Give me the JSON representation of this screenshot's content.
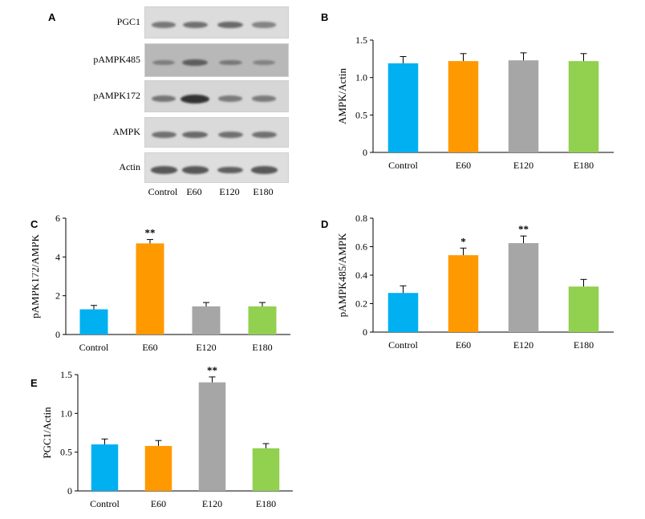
{
  "panel_a": {
    "letter": "A",
    "rows": [
      {
        "label": "PGC1",
        "bands": [
          0.45,
          0.5,
          0.55,
          0.35
        ],
        "bg": "#dcdcdc"
      },
      {
        "label": "pAMPK485",
        "bands": [
          0.25,
          0.55,
          0.3,
          0.2
        ],
        "bg": "#b8b8b8"
      },
      {
        "label": "pAMPK172",
        "bands": [
          0.45,
          1.0,
          0.4,
          0.4
        ],
        "bg": "#d6d6d6"
      },
      {
        "label": "AMPK",
        "bands": [
          0.5,
          0.55,
          0.5,
          0.5
        ],
        "bg": "#dadada"
      },
      {
        "label": "Actin",
        "bands": [
          0.7,
          0.7,
          0.65,
          0.7
        ],
        "bg": "#dedede"
      }
    ],
    "lanes": [
      "Control",
      "E60",
      "E120",
      "E180"
    ]
  },
  "colors": {
    "Control": "#00b0f0",
    "E60": "#ff9900",
    "E120": "#a6a6a6",
    "E180": "#92d050"
  },
  "chart_data": [
    {
      "letter": "B",
      "type": "bar",
      "categories": [
        "Control",
        "E60",
        "E120",
        "E180"
      ],
      "values": [
        1.19,
        1.22,
        1.23,
        1.22
      ],
      "errors": [
        0.09,
        0.1,
        0.1,
        0.1
      ],
      "annotations": [
        "",
        "",
        "",
        ""
      ],
      "ylabel": "AMPK/Actin",
      "ylim": [
        0,
        1.5
      ],
      "yticks": [
        "0",
        "0.5",
        "1.0",
        "1.5"
      ],
      "ytick_values": [
        0,
        0.5,
        1.0,
        1.5
      ]
    },
    {
      "letter": "C",
      "type": "bar",
      "categories": [
        "Control",
        "E60",
        "E120",
        "E180"
      ],
      "values": [
        1.3,
        4.7,
        1.45,
        1.45
      ],
      "errors": [
        0.2,
        0.2,
        0.2,
        0.2
      ],
      "annotations": [
        "",
        "**",
        "",
        ""
      ],
      "ylabel": "pAMPK172/AMPK",
      "ylim": [
        0,
        6
      ],
      "yticks": [
        "0",
        "2",
        "4",
        "6"
      ],
      "ytick_values": [
        0,
        2,
        4,
        6
      ]
    },
    {
      "letter": "D",
      "type": "bar",
      "categories": [
        "Control",
        "E60",
        "E120",
        "E180"
      ],
      "values": [
        0.275,
        0.54,
        0.625,
        0.32
      ],
      "errors": [
        0.05,
        0.05,
        0.05,
        0.05
      ],
      "annotations": [
        "",
        "*",
        "**",
        ""
      ],
      "ylabel": "pAMPK485/AMPK",
      "ylim": [
        0,
        0.8
      ],
      "yticks": [
        "0",
        "0.2",
        "0.4",
        "0.6",
        "0.8"
      ],
      "ytick_values": [
        0,
        0.2,
        0.4,
        0.6,
        0.8
      ]
    },
    {
      "letter": "E",
      "type": "bar",
      "categories": [
        "Control",
        "E60",
        "E120",
        "E180"
      ],
      "values": [
        0.6,
        0.58,
        1.4,
        0.55
      ],
      "errors": [
        0.07,
        0.07,
        0.07,
        0.06
      ],
      "annotations": [
        "",
        "",
        "**",
        ""
      ],
      "ylabel": "PGC1/Actin",
      "ylim": [
        0,
        1.5
      ],
      "yticks": [
        "0",
        "0.5",
        "1.0",
        "1.5"
      ],
      "ytick_values": [
        0,
        0.5,
        1.0,
        1.5
      ]
    }
  ]
}
